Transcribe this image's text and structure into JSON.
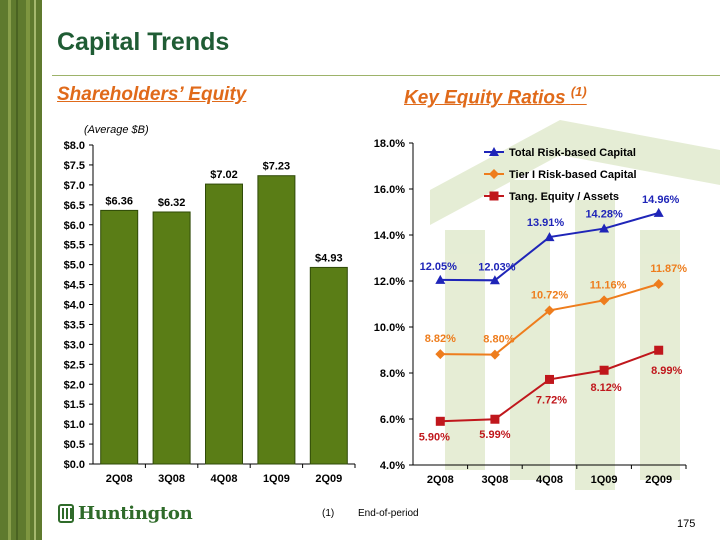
{
  "title": "Capital Trends",
  "equity_section": {
    "heading": "Shareholders’ Equity",
    "note": "(Average $B)"
  },
  "ratios_section": {
    "heading": "Key Equity Ratios",
    "footnote_ref": "(1)"
  },
  "footnote": {
    "marker": "(1)",
    "text": "End-of-period"
  },
  "logo_text": "Huntington",
  "page_number": "175",
  "colors": {
    "brand_green": "#1f5c34",
    "bar_fill": "#5a7d16",
    "accent_orange": "#e06a1a",
    "series_blue": "#1f25b8",
    "series_orange": "#ee7d1d",
    "series_red": "#c0171c"
  },
  "chart_data": [
    {
      "type": "bar",
      "categories": [
        "2Q08",
        "3Q08",
        "4Q08",
        "1Q09",
        "2Q09"
      ],
      "values": [
        6.36,
        6.32,
        7.02,
        7.23,
        4.93
      ],
      "value_labels": [
        "$6.36",
        "$6.32",
        "$7.02",
        "$7.23",
        "$4.93"
      ],
      "ylim": [
        0,
        8.0
      ],
      "y_ticks": [
        "$0.0",
        "$0.5",
        "$1.0",
        "$1.5",
        "$2.0",
        "$2.5",
        "$3.0",
        "$3.5",
        "$4.0",
        "$4.5",
        "$5.0",
        "$5.5",
        "$6.0",
        "$6.5",
        "$7.0",
        "$7.5",
        "$8.0"
      ],
      "grid": false
    },
    {
      "type": "line",
      "categories": [
        "2Q08",
        "3Q08",
        "4Q08",
        "1Q09",
        "2Q09"
      ],
      "ylim": [
        4.0,
        18.0
      ],
      "y_ticks": [
        "4.0%",
        "6.0%",
        "8.0%",
        "10.0%",
        "12.0%",
        "14.0%",
        "16.0%",
        "18.0%"
      ],
      "legend_position": "top-right",
      "grid": false,
      "series": [
        {
          "name": "Total Risk-based Capital",
          "values": [
            12.05,
            12.03,
            13.91,
            14.28,
            14.96
          ],
          "labels": [
            "12.05%",
            "12.03%",
            "13.91%",
            "14.28%",
            "14.96%"
          ],
          "color": "#1f25b8",
          "marker": "triangle"
        },
        {
          "name": "Tier I Risk-based Capital",
          "values": [
            8.82,
            8.8,
            10.72,
            11.16,
            11.87
          ],
          "labels": [
            "8.82%",
            "8.80%",
            "10.72%",
            "11.16%",
            "11.87%"
          ],
          "color": "#ee7d1d",
          "marker": "diamond"
        },
        {
          "name": "Tang. Equity / Assets",
          "values": [
            5.9,
            5.99,
            7.72,
            8.12,
            8.99
          ],
          "labels": [
            "5.90%",
            "5.99%",
            "7.72%",
            "8.12%",
            "8.99%"
          ],
          "color": "#c0171c",
          "marker": "square"
        }
      ]
    }
  ]
}
